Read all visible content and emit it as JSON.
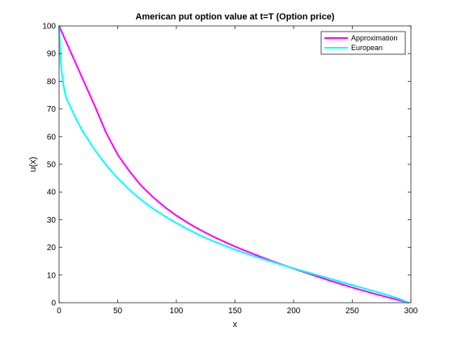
{
  "chart_data": {
    "type": "line",
    "title": "American put option value at t=T (Option price)",
    "xlabel": "x",
    "ylabel": "u(x)",
    "xlim": [
      0,
      300
    ],
    "ylim": [
      0,
      100
    ],
    "xticks": [
      0,
      50,
      100,
      150,
      200,
      250,
      300
    ],
    "yticks": [
      0,
      10,
      20,
      30,
      40,
      50,
      60,
      70,
      80,
      90,
      100
    ],
    "grid": false,
    "legend_position": "top-right",
    "series": [
      {
        "name": "Approximation",
        "color": "#ff00ff",
        "x": [
          0,
          10,
          20,
          30,
          40,
          50,
          60,
          70,
          80,
          90,
          100,
          110,
          120,
          130,
          140,
          150,
          160,
          170,
          180,
          190,
          200,
          210,
          220,
          230,
          240,
          250,
          260,
          270,
          280,
          290,
          298
        ],
        "y": [
          100,
          90.5,
          81,
          71.5,
          61.5,
          53.5,
          47.5,
          42.3,
          38.2,
          34.6,
          31.5,
          28.8,
          26.4,
          24.2,
          22.2,
          20.3,
          18.6,
          16.9,
          15.3,
          13.8,
          12.3,
          10.9,
          9.5,
          8.1,
          6.8,
          5.5,
          4.3,
          3.1,
          2.0,
          0.9,
          0
        ]
      },
      {
        "name": "European",
        "color": "#00ffff",
        "x": [
          0,
          1,
          2,
          4,
          6,
          10,
          15,
          20,
          30,
          40,
          50,
          60,
          70,
          80,
          90,
          100,
          110,
          120,
          130,
          140,
          150,
          160,
          170,
          180,
          190,
          200,
          210,
          220,
          230,
          240,
          250,
          260,
          270,
          280,
          290,
          298
        ],
        "y": [
          100,
          90,
          84,
          78,
          74,
          70.5,
          66,
          62,
          55.5,
          49.8,
          45,
          40.8,
          37.2,
          34,
          31.3,
          28.8,
          26.5,
          24.4,
          22.5,
          20.8,
          19.2,
          17.7,
          16.3,
          15,
          13.7,
          12.4,
          11.2,
          10,
          8.8,
          7.6,
          6.4,
          5.2,
          4,
          2.8,
          1.4,
          0
        ]
      }
    ]
  }
}
